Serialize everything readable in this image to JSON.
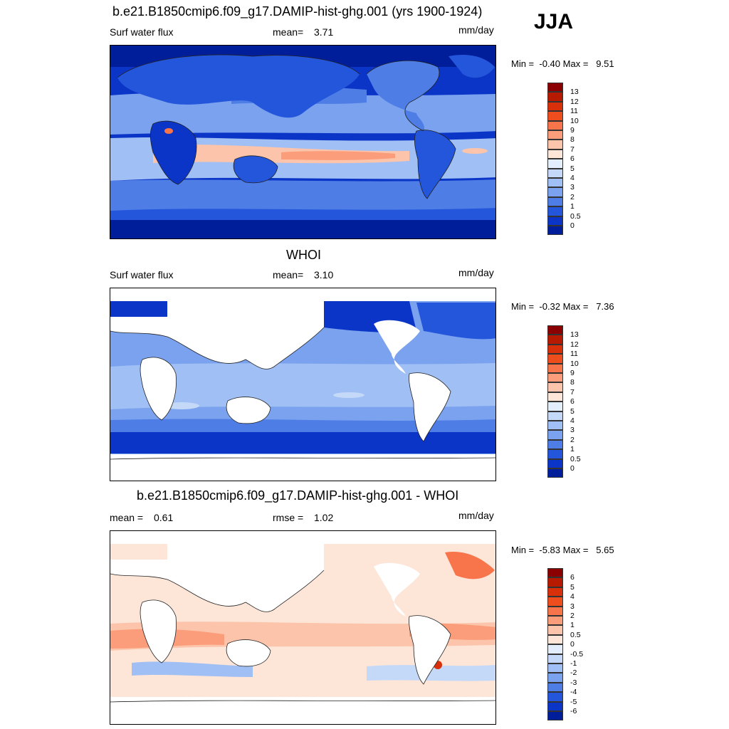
{
  "season": "JJA",
  "panels": [
    {
      "id": "model",
      "title": "b.e21.B1850cmip6.f09_g17.DAMIP-hist-ghg.001 (yrs 1900-1924)",
      "left_label": "Surf water flux",
      "center_label": "mean=",
      "center_value": "3.71",
      "units": "mm/day",
      "min_max_prefix": "Min =",
      "min_value": "-0.40",
      "max_prefix": "Max =",
      "max_value": "9.51"
    },
    {
      "id": "obs",
      "title": "WHOI",
      "left_label": "Surf water flux",
      "center_label": "mean=",
      "center_value": "3.10",
      "units": "mm/day",
      "min_max_prefix": "Min =",
      "min_value": "-0.32",
      "max_prefix": "Max =",
      "max_value": "7.36"
    },
    {
      "id": "diff",
      "title": "b.e21.B1850cmip6.f09_g17.DAMIP-hist-ghg.001 - WHOI",
      "left_label": "mean =",
      "left_value": "0.61",
      "center_label": "rmse =",
      "center_value": "1.02",
      "units": "mm/day",
      "min_max_prefix": "Min =",
      "min_value": "-5.83",
      "max_prefix": "Max =",
      "max_value": "5.65"
    }
  ],
  "colorbar_abs": {
    "levels": [
      "13",
      "12",
      "11",
      "10",
      "9",
      "8",
      "7",
      "6",
      "5",
      "4",
      "3",
      "2",
      "1",
      "0.5",
      "0"
    ],
    "colors": [
      "#8b0000",
      "#b61a00",
      "#d8300a",
      "#ee4e1e",
      "#f8744a",
      "#fb9c7a",
      "#fcc4aa",
      "#fde6d8",
      "#e3eefc",
      "#c4d8f8",
      "#a0bff4",
      "#7aa2ee",
      "#4f7de6",
      "#2456dc",
      "#0b35c6",
      "#001d9a"
    ]
  },
  "colorbar_diff": {
    "levels": [
      "6",
      "5",
      "4",
      "3",
      "2",
      "1",
      "0.5",
      "0",
      "-0.5",
      "-1",
      "-2",
      "-3",
      "-4",
      "-5",
      "-6"
    ],
    "colors": [
      "#8b0000",
      "#b61a00",
      "#d8300a",
      "#ee4e1e",
      "#f8744a",
      "#fb9c7a",
      "#fcc4aa",
      "#fde6d8",
      "#e3eefc",
      "#c4d8f8",
      "#a0bff4",
      "#7aa2ee",
      "#4f7de6",
      "#2456dc",
      "#0b35c6",
      "#001d9a"
    ]
  }
}
